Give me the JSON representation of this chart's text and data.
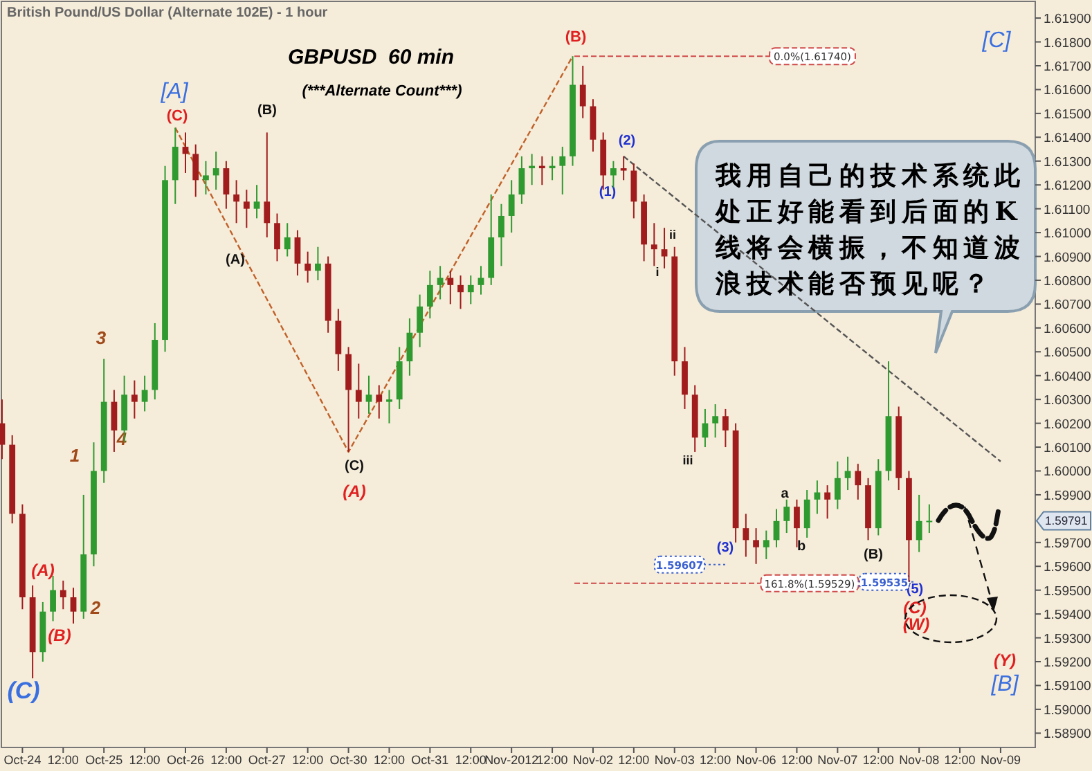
{
  "chart_data": {
    "type": "candlestick",
    "title": "British Pound/US Dollar (Alternate 102E) - 1 hour",
    "subtitle": "GBPUSD  60 min",
    "categories": [
      null,
      null,
      "Oct-24",
      null,
      null,
      null,
      "12:00",
      null,
      null,
      null,
      "Oct-25",
      null,
      null,
      null,
      "12:00",
      null,
      null,
      null,
      "Oct-26",
      null,
      null,
      null,
      "12:00",
      null,
      null,
      null,
      "Oct-27",
      null,
      null,
      null,
      "12:00",
      null,
      null,
      null,
      "Oct-30",
      null,
      null,
      null,
      "12:00",
      null,
      null,
      null,
      "Oct-31",
      null,
      null,
      null,
      "12:00",
      null,
      null,
      null,
      "Nov-2012",
      null,
      null,
      null,
      "12:00",
      null,
      null,
      null,
      "Nov-02",
      null,
      null,
      null,
      "12:00",
      null,
      null,
      null,
      "Nov-03",
      null,
      null,
      null,
      "12:00",
      null,
      null,
      null,
      "Nov-06",
      null,
      null,
      null,
      "12:00",
      null,
      null,
      null,
      "Nov-07",
      null,
      null,
      null,
      "12:00",
      null,
      null,
      null,
      "Nov-08",
      null,
      null,
      null,
      "12:00",
      null,
      null,
      null,
      "Nov-09"
    ],
    "ohlc": [
      [
        1.602,
        1.603,
        1.6005,
        1.6011
      ],
      [
        1.6011,
        1.6015,
        1.5978,
        1.5982
      ],
      [
        1.5982,
        1.5986,
        1.5942,
        1.5947
      ],
      [
        1.5947,
        1.5952,
        1.5913,
        1.5924
      ],
      [
        1.5924,
        1.5945,
        1.592,
        1.5941
      ],
      [
        1.5941,
        1.5956,
        1.5937,
        1.595
      ],
      [
        1.595,
        1.5954,
        1.5942,
        1.5947
      ],
      [
        1.5947,
        1.5951,
        1.5936,
        1.5941
      ],
      [
        1.5941,
        1.599,
        1.5938,
        1.5965
      ],
      [
        1.5965,
        1.6012,
        1.596,
        1.6
      ],
      [
        1.6,
        1.6047,
        1.5995,
        1.6029
      ],
      [
        1.6029,
        1.6034,
        1.6008,
        1.6017
      ],
      [
        1.6017,
        1.604,
        1.6012,
        1.6032
      ],
      [
        1.6032,
        1.6038,
        1.6022,
        1.6029
      ],
      [
        1.6029,
        1.604,
        1.6025,
        1.6034
      ],
      [
        1.6034,
        1.6062,
        1.603,
        1.6055
      ],
      [
        1.6055,
        1.6128,
        1.605,
        1.6122
      ],
      [
        1.6122,
        1.6144,
        1.6112,
        1.6136
      ],
      [
        1.6136,
        1.6142,
        1.6125,
        1.6133
      ],
      [
        1.6133,
        1.6137,
        1.6115,
        1.6122
      ],
      [
        1.6122,
        1.613,
        1.6116,
        1.6124
      ],
      [
        1.6124,
        1.6134,
        1.6118,
        1.6127
      ],
      [
        1.6127,
        1.613,
        1.611,
        1.6116
      ],
      [
        1.6116,
        1.6122,
        1.6104,
        1.6113
      ],
      [
        1.6113,
        1.6118,
        1.6102,
        1.611
      ],
      [
        1.611,
        1.612,
        1.6106,
        1.6113
      ],
      [
        1.6113,
        1.6142,
        1.6098,
        1.6104
      ],
      [
        1.6104,
        1.6108,
        1.6088,
        1.6093
      ],
      [
        1.6093,
        1.6104,
        1.609,
        1.6098
      ],
      [
        1.6098,
        1.6101,
        1.6082,
        1.6087
      ],
      [
        1.6087,
        1.6092,
        1.6079,
        1.6084
      ],
      [
        1.6084,
        1.6094,
        1.608,
        1.6087
      ],
      [
        1.6087,
        1.609,
        1.6058,
        1.6063
      ],
      [
        1.6063,
        1.6068,
        1.6042,
        1.6049
      ],
      [
        1.6049,
        1.6052,
        1.6008,
        1.6034
      ],
      [
        1.6034,
        1.6045,
        1.6022,
        1.6029
      ],
      [
        1.6029,
        1.604,
        1.6024,
        1.6032
      ],
      [
        1.6032,
        1.6036,
        1.6022,
        1.6029
      ],
      [
        1.6029,
        1.6034,
        1.602,
        1.603
      ],
      [
        1.603,
        1.6052,
        1.6026,
        1.6046
      ],
      [
        1.6046,
        1.6064,
        1.604,
        1.6058
      ],
      [
        1.6058,
        1.6074,
        1.6052,
        1.6069
      ],
      [
        1.6069,
        1.6084,
        1.6064,
        1.6078
      ],
      [
        1.6078,
        1.6086,
        1.6072,
        1.6081
      ],
      [
        1.6081,
        1.6084,
        1.607,
        1.6078
      ],
      [
        1.6078,
        1.6082,
        1.6068,
        1.6075
      ],
      [
        1.6075,
        1.6082,
        1.607,
        1.6078
      ],
      [
        1.6078,
        1.6086,
        1.6074,
        1.6081
      ],
      [
        1.6081,
        1.6116,
        1.6078,
        1.6098
      ],
      [
        1.6098,
        1.6112,
        1.6086,
        1.6107
      ],
      [
        1.6107,
        1.6122,
        1.61,
        1.6116
      ],
      [
        1.6116,
        1.6132,
        1.6112,
        1.6127
      ],
      [
        1.6127,
        1.6133,
        1.612,
        1.6128
      ],
      [
        1.6128,
        1.6132,
        1.612,
        1.6127
      ],
      [
        1.6127,
        1.6132,
        1.6122,
        1.6128
      ],
      [
        1.6128,
        1.6136,
        1.6116,
        1.6132
      ],
      [
        1.6132,
        1.6174,
        1.6128,
        1.6162
      ],
      [
        1.6162,
        1.617,
        1.6148,
        1.6153
      ],
      [
        1.6153,
        1.6156,
        1.6134,
        1.6139
      ],
      [
        1.6139,
        1.6142,
        1.6118,
        1.6124
      ],
      [
        1.6124,
        1.613,
        1.6119,
        1.6127
      ],
      [
        1.6127,
        1.6132,
        1.6122,
        1.6126
      ],
      [
        1.6126,
        1.6129,
        1.6106,
        1.6113
      ],
      [
        1.6113,
        1.6116,
        1.6088,
        1.6095
      ],
      [
        1.6095,
        1.6104,
        1.6086,
        1.6093
      ],
      [
        1.6093,
        1.6102,
        1.6085,
        1.609
      ],
      [
        1.609,
        1.6094,
        1.604,
        1.6046
      ],
      [
        1.6046,
        1.6052,
        1.6026,
        1.6032
      ],
      [
        1.6032,
        1.6036,
        1.6008,
        1.6014
      ],
      [
        1.6014,
        1.6026,
        1.601,
        1.602
      ],
      [
        1.602,
        1.6028,
        1.6014,
        1.6023
      ],
      [
        1.6023,
        1.6026,
        1.601,
        1.6017
      ],
      [
        1.6017,
        1.602,
        1.597,
        1.5976
      ],
      [
        1.5976,
        1.5982,
        1.5964,
        1.5971
      ],
      [
        1.5971,
        1.5976,
        1.5961,
        1.5968
      ],
      [
        1.5968,
        1.5975,
        1.5963,
        1.5971
      ],
      [
        1.5971,
        1.5984,
        1.5968,
        1.5979
      ],
      [
        1.5979,
        1.5988,
        1.5974,
        1.5985
      ],
      [
        1.5985,
        1.5988,
        1.5968,
        1.5976
      ],
      [
        1.5976,
        1.5992,
        1.5972,
        1.5988
      ],
      [
        1.5988,
        1.5996,
        1.5982,
        1.5991
      ],
      [
        1.5991,
        1.5994,
        1.598,
        1.5988
      ],
      [
        1.5988,
        1.6004,
        1.5984,
        1.5997
      ],
      [
        1.5997,
        1.6006,
        1.5992,
        1.6
      ],
      [
        1.6,
        1.6003,
        1.5988,
        1.5994
      ],
      [
        1.5994,
        1.5997,
        1.5971,
        1.5976
      ],
      [
        1.5976,
        1.6005,
        1.5973,
        1.6
      ],
      [
        1.6,
        1.6046,
        1.5996,
        1.6023
      ],
      [
        1.6023,
        1.6027,
        1.5992,
        1.5997
      ],
      [
        1.5997,
        1.6,
        1.59535,
        1.5971
      ],
      [
        1.5971,
        1.599,
        1.5966,
        1.5979
      ],
      [
        1.5979,
        1.5986,
        1.5974,
        1.59791
      ],
      null,
      null,
      null,
      null,
      null,
      null,
      null
    ],
    "series": [
      {
        "type": "line",
        "values": [
          null,
          null,
          null,
          null,
          null,
          null,
          null,
          null,
          null,
          null,
          null,
          null,
          null,
          null,
          null,
          null,
          null,
          1.6144,
          null,
          null,
          null,
          null,
          null,
          null,
          null,
          null,
          null,
          null,
          null,
          null,
          null,
          null,
          null,
          null,
          1.6008,
          null,
          null,
          null,
          null,
          null,
          null,
          null,
          null,
          null,
          null,
          null,
          null,
          null,
          null,
          null,
          null,
          null,
          null,
          null,
          null,
          null,
          1.6174,
          null,
          null,
          null,
          null,
          null,
          null,
          null,
          null,
          null,
          null,
          null,
          null,
          null,
          null,
          null,
          null,
          null,
          null,
          null,
          null,
          null,
          null,
          null,
          null,
          null,
          null,
          null,
          null,
          null,
          null,
          null,
          null,
          null,
          null,
          null,
          null,
          null,
          null,
          null,
          null,
          null,
          null
        ],
        "color": "#c0622a",
        "line_style": "dashed"
      },
      {
        "type": "line",
        "values": [
          null,
          null,
          null,
          null,
          null,
          null,
          null,
          null,
          null,
          null,
          null,
          null,
          null,
          null,
          null,
          null,
          null,
          null,
          null,
          null,
          null,
          null,
          null,
          null,
          null,
          null,
          null,
          null,
          null,
          null,
          null,
          null,
          null,
          null,
          null,
          null,
          null,
          null,
          null,
          null,
          null,
          null,
          null,
          null,
          null,
          null,
          null,
          null,
          null,
          null,
          null,
          null,
          null,
          null,
          null,
          null,
          null,
          null,
          null,
          null,
          null,
          1.6132,
          null,
          null,
          null,
          null,
          null,
          null,
          null,
          null,
          null,
          null,
          null,
          null,
          null,
          null,
          null,
          null,
          null,
          null,
          null,
          null,
          null,
          null,
          null,
          null,
          null,
          null,
          null,
          null,
          null,
          null,
          null,
          null,
          null,
          null,
          null,
          null,
          1.6004
        ],
        "color": "#555555",
        "line_style": "dashed"
      }
    ],
    "ref_lines": [
      {
        "axis": "y",
        "value": 1.6174,
        "label": "0.0%(1.61740)",
        "color": "#d04a4a",
        "line_style": "dashed"
      },
      {
        "axis": "y",
        "value": 1.59529,
        "label": "161.8%(1.59529)",
        "color": "#d04a4a",
        "line_style": "dashed"
      },
      {
        "axis": "y",
        "value": 1.59607,
        "label": "1.59607",
        "color": "#3a60d0",
        "line_style": "dotted"
      },
      {
        "axis": "y",
        "value": 1.59535,
        "label": "1.59535",
        "color": "#3a60d0",
        "line_style": "dotted"
      }
    ],
    "annotations": [
      "(***Alternate Count***)",
      "我用自己的技术系统此处正好能看到后面的K线将会横振，不知道波浪技术能否预见呢？",
      "1.59791",
      "(C)",
      "(A)",
      "(B)",
      "2",
      "1",
      "3",
      "4",
      "[A]",
      "(C)",
      "(B)",
      "(A)",
      "(C)",
      "(A)",
      "(B)",
      "(2)",
      "(1)",
      "ii",
      "i",
      "iii",
      "(3)",
      "a",
      "b",
      "(B)",
      "(5)",
      "(C)",
      "(W)",
      "(Y)",
      "[B]",
      "[C]"
    ],
    "ylim": [
      1.5884,
      1.6197
    ],
    "yticks": [
      {
        "value": 1.589,
        "label": "1.58900"
      },
      {
        "value": 1.59,
        "label": "1.59000"
      },
      {
        "value": 1.591,
        "label": "1.59100"
      },
      {
        "value": 1.592,
        "label": "1.59200"
      },
      {
        "value": 1.593,
        "label": "1.59300"
      },
      {
        "value": 1.594,
        "label": "1.59400"
      },
      {
        "value": 1.595,
        "label": "1.59500"
      },
      {
        "value": 1.596,
        "label": "1.59600"
      },
      {
        "value": 1.597,
        "label": "1.59700"
      },
      {
        "value": 1.599,
        "label": "1.59900"
      },
      {
        "value": 1.6,
        "label": "1.60000"
      },
      {
        "value": 1.601,
        "label": "1.60100"
      },
      {
        "value": 1.602,
        "label": "1.60200"
      },
      {
        "value": 1.603,
        "label": "1.60300"
      },
      {
        "value": 1.604,
        "label": "1.60400"
      },
      {
        "value": 1.605,
        "label": "1.60500"
      },
      {
        "value": 1.606,
        "label": "1.60600"
      },
      {
        "value": 1.607,
        "label": "1.60700"
      },
      {
        "value": 1.608,
        "label": "1.60800"
      },
      {
        "value": 1.609,
        "label": "1.60900"
      },
      {
        "value": 1.61,
        "label": "1.61000"
      },
      {
        "value": 1.611,
        "label": "1.61100"
      },
      {
        "value": 1.612,
        "label": "1.61200"
      },
      {
        "value": 1.613,
        "label": "1.61300"
      },
      {
        "value": 1.614,
        "label": "1.61400"
      },
      {
        "value": 1.615,
        "label": "1.61500"
      },
      {
        "value": 1.616,
        "label": "1.61600"
      },
      {
        "value": 1.617,
        "label": "1.61700"
      },
      {
        "value": 1.618,
        "label": "1.61800"
      },
      {
        "value": 1.619,
        "label": "1.61900"
      }
    ]
  }
}
